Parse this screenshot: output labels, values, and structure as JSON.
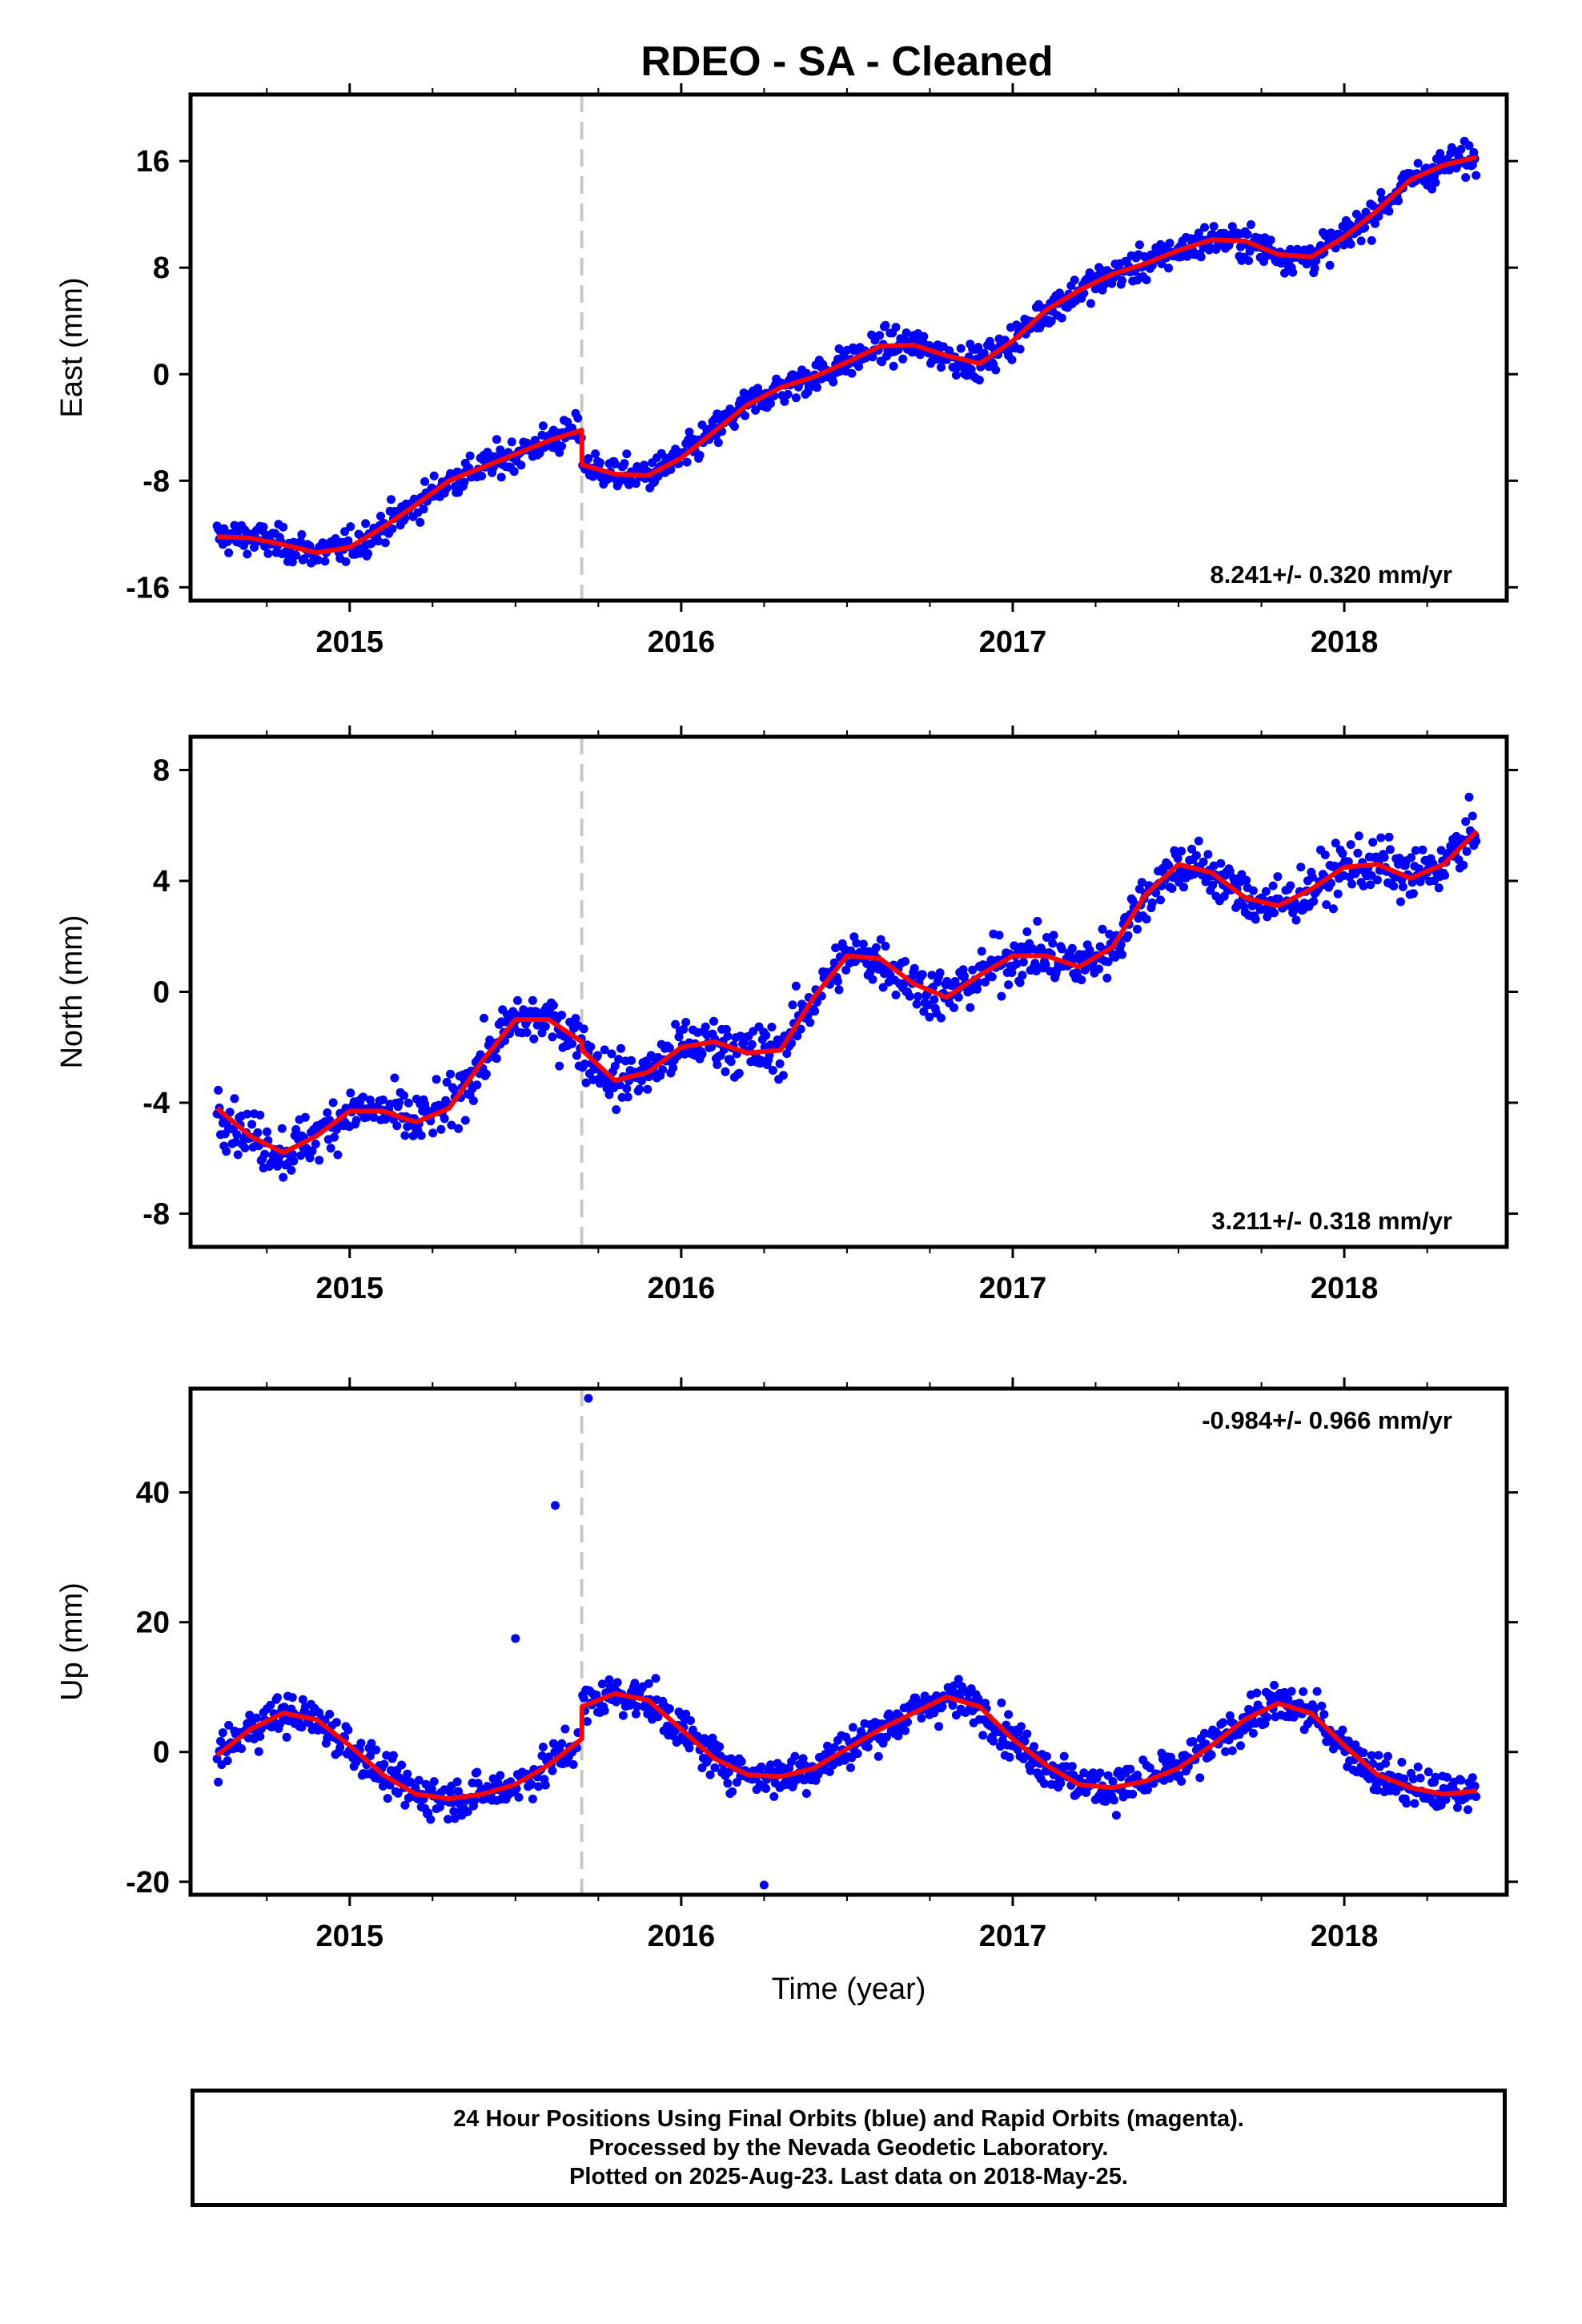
{
  "title": "RDEO  - SA - Cleaned",
  "footer": {
    "line1": "24 Hour Positions Using Final Orbits (blue) and Rapid Orbits (magenta).",
    "line2": "Processed by the Nevada Geodetic Laboratory.",
    "line3": "Plotted on 2025-Aug-23. Last data on 2018-May-25."
  },
  "colors": {
    "points": "#0000ff",
    "model": "#ff0000",
    "event_line": "#c8c8c8",
    "frame": "#000000"
  },
  "chart_data": [
    {
      "type": "scatter",
      "id": "east",
      "ylabel": "East (mm)",
      "xlabel": "",
      "xlim": [
        2014.52,
        2018.49
      ],
      "ylim": [
        -17,
        21
      ],
      "yticks": [
        -16,
        -8,
        0,
        8,
        16
      ],
      "xticks": [
        2015,
        2016,
        2017,
        2018
      ],
      "event_line_x": 2015.7,
      "rate_label": "8.241+/- 0.320 mm/yr",
      "rate_position": "bottom-right",
      "model": {
        "x": [
          2014.6,
          2014.7,
          2014.8,
          2014.9,
          2015.0,
          2015.1,
          2015.2,
          2015.3,
          2015.4,
          2015.5,
          2015.6,
          2015.7,
          2015.701,
          2015.8,
          2015.9,
          2016.0,
          2016.1,
          2016.2,
          2016.3,
          2016.4,
          2016.5,
          2016.6,
          2016.7,
          2016.8,
          2016.9,
          2017.0,
          2017.1,
          2017.2,
          2017.3,
          2017.4,
          2017.5,
          2017.6,
          2017.7,
          2017.8,
          2017.9,
          2018.0,
          2018.1,
          2018.2,
          2018.3,
          2018.4
        ],
        "y": [
          -12.2,
          -12.3,
          -12.8,
          -13.4,
          -13.0,
          -11.5,
          -9.8,
          -8.0,
          -7.0,
          -6.0,
          -5.0,
          -4.2,
          -6.8,
          -7.5,
          -7.6,
          -6.3,
          -4.3,
          -2.3,
          -1.0,
          -0.2,
          0.9,
          2.1,
          2.2,
          1.4,
          0.8,
          2.5,
          4.8,
          6.3,
          7.5,
          8.3,
          9.3,
          10.1,
          10.0,
          9.0,
          8.8,
          10.3,
          12.3,
          14.6,
          15.7,
          16.3
        ]
      }
    },
    {
      "type": "scatter",
      "id": "north",
      "ylabel": "North (mm)",
      "xlabel": "",
      "xlim": [
        2014.52,
        2018.49
      ],
      "ylim": [
        -9.2,
        9.2
      ],
      "yticks": [
        -8,
        -4,
        0,
        4,
        8
      ],
      "xticks": [
        2015,
        2016,
        2017,
        2018
      ],
      "event_line_x": 2015.7,
      "rate_label": "3.211+/- 0.318 mm/yr",
      "rate_position": "bottom-right",
      "model": {
        "x": [
          2014.6,
          2014.7,
          2014.8,
          2014.9,
          2015.0,
          2015.1,
          2015.2,
          2015.3,
          2015.4,
          2015.5,
          2015.6,
          2015.7,
          2015.701,
          2015.8,
          2015.9,
          2016.0,
          2016.1,
          2016.2,
          2016.3,
          2016.4,
          2016.5,
          2016.6,
          2016.7,
          2016.8,
          2016.9,
          2017.0,
          2017.1,
          2017.2,
          2017.3,
          2017.4,
          2017.5,
          2017.6,
          2017.7,
          2017.8,
          2017.9,
          2018.0,
          2018.1,
          2018.2,
          2018.3,
          2018.4
        ],
        "y": [
          -4.2,
          -5.2,
          -5.8,
          -5.2,
          -4.3,
          -4.3,
          -4.7,
          -4.2,
          -2.5,
          -1.0,
          -1.0,
          -1.8,
          -2.1,
          -3.2,
          -2.9,
          -2.0,
          -1.8,
          -2.2,
          -2.1,
          -0.2,
          1.3,
          1.2,
          0.3,
          -0.2,
          0.6,
          1.3,
          1.3,
          0.9,
          1.6,
          3.5,
          4.6,
          4.3,
          3.4,
          3.1,
          3.7,
          4.5,
          4.6,
          4.1,
          4.6,
          5.8
        ]
      }
    },
    {
      "type": "scatter",
      "id": "up",
      "ylabel": "Up (mm)",
      "xlabel": "Time (year)",
      "xlim": [
        2014.52,
        2018.49
      ],
      "ylim": [
        -22,
        56
      ],
      "yticks": [
        -20,
        0,
        20,
        40
      ],
      "xticks": [
        2015,
        2016,
        2017,
        2018
      ],
      "event_line_x": 2015.7,
      "rate_label": "-0.984+/- 0.966 mm/yr",
      "rate_position": "top-right",
      "outliers": [
        {
          "x": 2015.62,
          "y": 38
        },
        {
          "x": 2015.5,
          "y": 17.5
        },
        {
          "x": 2015.72,
          "y": 54.5
        },
        {
          "x": 2016.25,
          "y": -20.5
        }
      ],
      "model": {
        "x": [
          2014.6,
          2014.7,
          2014.8,
          2014.9,
          2015.0,
          2015.1,
          2015.2,
          2015.3,
          2015.4,
          2015.5,
          2015.6,
          2015.7,
          2015.701,
          2015.8,
          2015.9,
          2016.0,
          2016.1,
          2016.2,
          2016.3,
          2016.4,
          2016.5,
          2016.6,
          2016.7,
          2016.8,
          2016.9,
          2017.0,
          2017.1,
          2017.2,
          2017.3,
          2017.4,
          2017.5,
          2017.6,
          2017.7,
          2017.8,
          2017.9,
          2018.0,
          2018.1,
          2018.2,
          2018.3,
          2018.4
        ],
        "y": [
          -0.5,
          3.5,
          6.0,
          5.0,
          1.0,
          -3.5,
          -6.5,
          -7.2,
          -6.5,
          -5.0,
          -2.0,
          2.0,
          7.0,
          9.0,
          8.0,
          3.5,
          -1.0,
          -3.5,
          -3.8,
          -2.5,
          0.5,
          3.5,
          6.0,
          8.5,
          7.0,
          2.0,
          -2.0,
          -5.0,
          -5.5,
          -4.5,
          -2.5,
          1.0,
          5.0,
          7.5,
          6.0,
          1.0,
          -3.5,
          -5.5,
          -6.5,
          -6.0
        ]
      }
    }
  ]
}
